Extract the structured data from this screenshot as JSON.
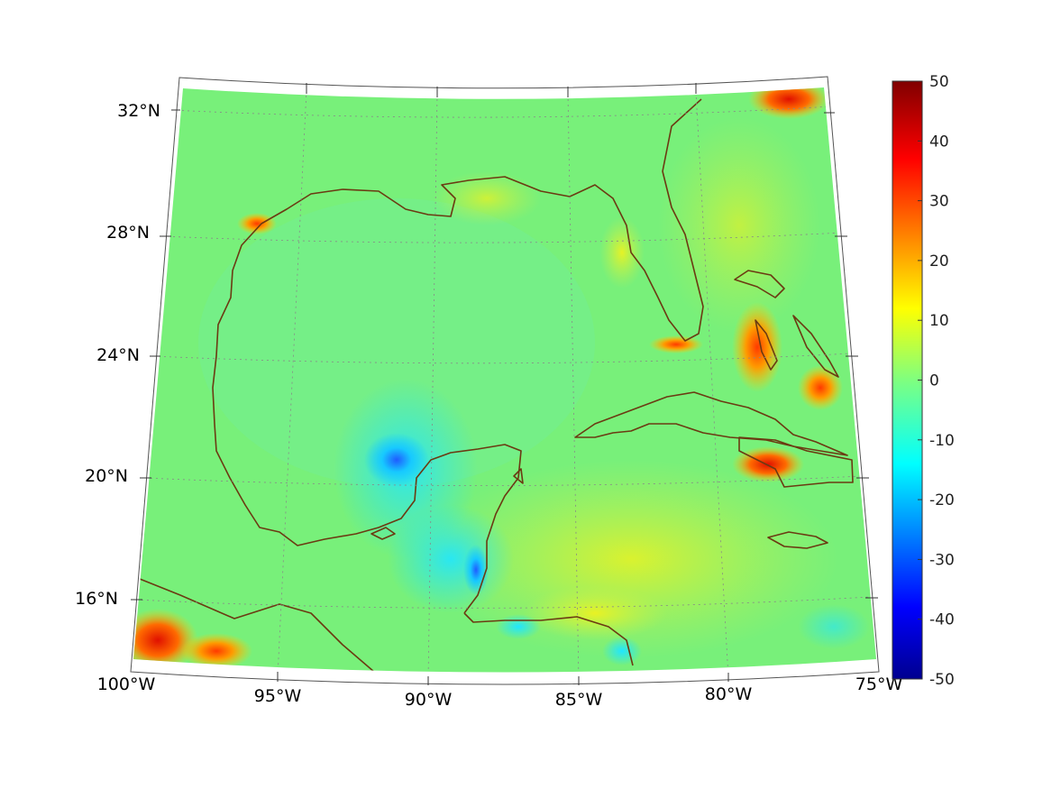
{
  "map": {
    "lat_labels": [
      "32°N",
      "28°N",
      "24°N",
      "20°N",
      "16°N"
    ],
    "lon_labels": [
      "100°W",
      "95°W",
      "90°W",
      "85°W",
      "80°W",
      "75°W"
    ],
    "colorbar": {
      "ticks": [
        "50",
        "40",
        "30",
        "20",
        "10",
        "0",
        "-10",
        "-20",
        "-30",
        "-40",
        "-50"
      ],
      "min": -50,
      "max": 50,
      "colormap": "jet"
    },
    "colors": {
      "coastline": "#6b3a12",
      "land_fill": "#4fe39c",
      "field_base": "#6ff07a"
    }
  }
}
